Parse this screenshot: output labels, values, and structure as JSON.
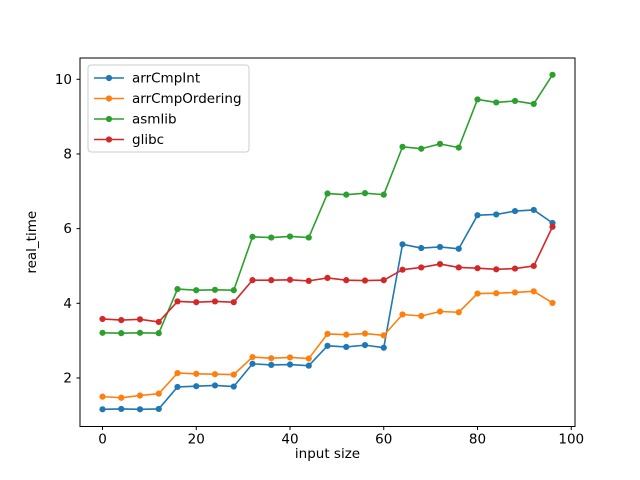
{
  "chart_data": {
    "type": "line",
    "title": "",
    "xlabel": "input size",
    "ylabel": "real_time",
    "grid": false,
    "legend_position": "upper left",
    "marker": "dot",
    "xlim": [
      -4.8,
      100.8
    ],
    "ylim": [
      0.7,
      10.57
    ],
    "xticks": [
      0,
      20,
      40,
      60,
      80,
      100
    ],
    "yticks": [
      2,
      4,
      6,
      8,
      10
    ],
    "x": [
      0,
      4,
      8,
      12,
      16,
      20,
      24,
      28,
      32,
      36,
      40,
      44,
      48,
      52,
      56,
      60,
      64,
      68,
      72,
      76,
      80,
      84,
      88,
      92,
      96
    ],
    "series": [
      {
        "name": "arrCmpInt",
        "color": "#1f77b4",
        "values": [
          1.16,
          1.17,
          1.16,
          1.17,
          1.76,
          1.78,
          1.8,
          1.77,
          2.38,
          2.35,
          2.36,
          2.33,
          2.86,
          2.83,
          2.88,
          2.81,
          5.58,
          5.48,
          5.51,
          5.46,
          6.36,
          6.38,
          6.47,
          6.5,
          6.15
        ]
      },
      {
        "name": "arrCmpOrdering",
        "color": "#ff7f0e",
        "values": [
          1.5,
          1.47,
          1.53,
          1.58,
          2.13,
          2.11,
          2.1,
          2.09,
          2.56,
          2.53,
          2.55,
          2.52,
          3.18,
          3.16,
          3.19,
          3.14,
          3.7,
          3.66,
          3.78,
          3.76,
          4.26,
          4.27,
          4.29,
          4.32,
          4.01
        ]
      },
      {
        "name": "asmlib",
        "color": "#2ca02c",
        "values": [
          3.21,
          3.2,
          3.21,
          3.2,
          4.38,
          4.35,
          4.36,
          4.35,
          5.78,
          5.76,
          5.79,
          5.76,
          6.94,
          6.91,
          6.95,
          6.91,
          8.19,
          8.14,
          8.27,
          8.17,
          9.46,
          9.38,
          9.42,
          9.34,
          10.12
        ]
      },
      {
        "name": "glibc",
        "color": "#d62728",
        "values": [
          3.58,
          3.55,
          3.57,
          3.5,
          4.05,
          4.03,
          4.05,
          4.03,
          4.62,
          4.62,
          4.63,
          4.6,
          4.68,
          4.62,
          4.61,
          4.62,
          4.9,
          4.96,
          5.05,
          4.96,
          4.94,
          4.91,
          4.93,
          5.0,
          6.05
        ]
      }
    ]
  },
  "colors": {
    "background": "#ffffff",
    "axis": "#000000",
    "tick_label": "#000000",
    "legend_border": "#cccccc",
    "legend_background": "#ffffff"
  }
}
